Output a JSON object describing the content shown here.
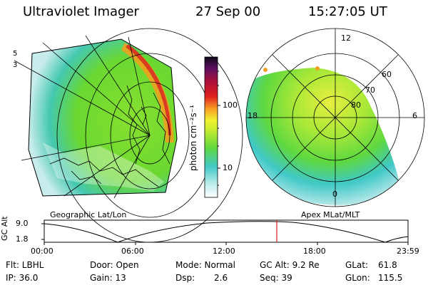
{
  "header": {
    "title": "Ultraviolet Imager",
    "date": "27 Sep 00",
    "time": "15:27:05 UT"
  },
  "left_panel": {
    "caption": "Geographic Lat/Lon"
  },
  "colorbar": {
    "label": "photon cm⁻²s⁻¹",
    "ticks": [
      "100",
      "10"
    ]
  },
  "right_panel": {
    "caption": "Apex MLat/MLT",
    "mlt_labels": [
      "12",
      "18",
      "6",
      "0"
    ],
    "lat_labels": [
      "60",
      "70",
      "80"
    ]
  },
  "orbit": {
    "ylabel": "GC Alt",
    "yticks": [
      "9.0",
      "1.8"
    ],
    "xticks": [
      "00:00",
      "06:00",
      "12:00",
      "18:00",
      "23:59"
    ],
    "current_time": "15:27"
  },
  "status": {
    "flt": "Flt: LBHL",
    "ip": "IP: 36.0",
    "door": "Door: Open",
    "gain": "Gain: 13",
    "mode": "Mode: Normal",
    "dsp_label": "Dsp:",
    "dsp_value": "2.6",
    "gc_alt": "GC Alt: 9.2 Re",
    "seq": "Seq: 39",
    "glat_label": "GLat:",
    "glat_value": "61.8",
    "glon_label": "GLon:",
    "glon_value": "115.5"
  },
  "colors": {
    "aurora_green": "#7fe02a",
    "aurora_cyan": "#3ec8c8",
    "aurora_yellow": "#e0ef30",
    "aurora_orange": "#f0a020",
    "aurora_red": "#d82020",
    "marker_red": "#e02020"
  }
}
